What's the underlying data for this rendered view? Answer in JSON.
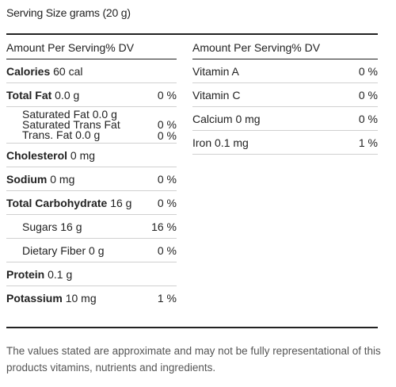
{
  "serving": "Serving Size grams (20 g)",
  "left": {
    "header": "Amount Per Serving% DV",
    "rows": [
      {
        "bold": "Calories",
        "rest": " 60 cal",
        "dv": ""
      },
      {
        "bold": "Total Fat",
        "rest": " 0.0 g",
        "dv": "0 %"
      },
      {
        "sat1": "Saturated Fat 0.0 g",
        "sat2": "Saturated Trans Fat",
        "sat3": "Trans. Fat 0.0 g",
        "dv2": "0 %",
        "dv3": "0 %"
      },
      {
        "bold": "Cholesterol",
        "rest": " 0 mg",
        "dv": ""
      },
      {
        "bold": "Sodium",
        "rest": " 0 mg",
        "dv": "0 %"
      },
      {
        "bold": "Total Carbohydrate",
        "rest": " 16 g",
        "dv": "0 %"
      },
      {
        "name": "Sugars 16 g",
        "dv": "16 %"
      },
      {
        "name": "Dietary Fiber 0 g",
        "dv": "0 %"
      },
      {
        "bold": "Protein",
        "rest": " 0.1 g",
        "dv": ""
      },
      {
        "bold": "Potassium",
        "rest": " 10 mg",
        "dv": "1 %"
      }
    ]
  },
  "right": {
    "header": "Amount Per Serving% DV",
    "rows": [
      {
        "name": "Vitamin A",
        "dv": "0 %"
      },
      {
        "name": "Vitamin C",
        "dv": "0 %"
      },
      {
        "name": "Calcium 0 mg",
        "dv": "0 %"
      },
      {
        "name": "Iron 0.1 mg",
        "dv": "1 %"
      }
    ]
  },
  "disclaimer": "The values stated are approximate and may not be fully representational of this products vitamins, nutrients and ingredients."
}
